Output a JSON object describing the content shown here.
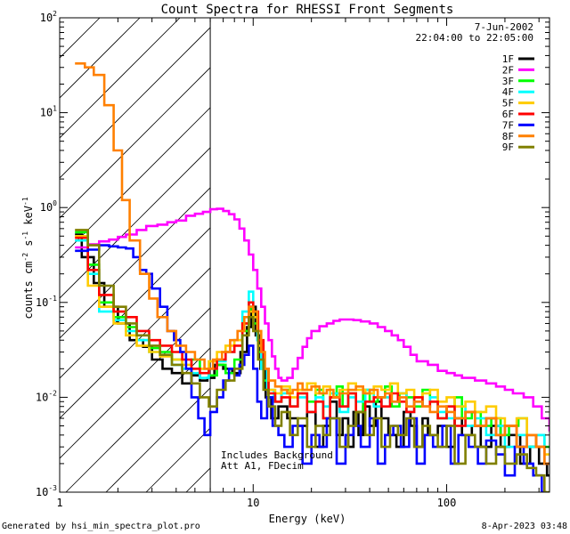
{
  "chart_data": {
    "type": "line",
    "title": "Count Spectra for RHESSI Front Segments",
    "xlabel": "Energy (keV)",
    "ylabel": "counts cm",
    "ylabel_parts": {
      "a": "counts cm",
      "b": "-2",
      "c": " s",
      "d": "-1",
      "e": " keV",
      "f": "-1"
    },
    "x_scale": "log",
    "y_scale": "log",
    "xlim": [
      1,
      340
    ],
    "ylim": [
      0.001,
      100
    ],
    "x_ticks": [
      {
        "v": 1,
        "label": "1"
      },
      {
        "v": 10,
        "label": "10"
      },
      {
        "v": 100,
        "label": "100"
      }
    ],
    "y_ticks": [
      {
        "v": 0.001,
        "base": "10",
        "exp": "-3"
      },
      {
        "v": 0.01,
        "base": "10",
        "exp": "-2"
      },
      {
        "v": 0.1,
        "base": "10",
        "exp": "-1"
      },
      {
        "v": 1,
        "base": "10",
        "exp": "0"
      },
      {
        "v": 10,
        "base": "10",
        "exp": "1"
      },
      {
        "v": 100,
        "base": "10",
        "exp": "2"
      }
    ],
    "date": "7-Jun-2002",
    "time_range": "22:04:00 to 22:05:00",
    "annotation_1": "Includes Background",
    "annotation_2": "Att A1, FDecim",
    "threshold_kev": 6,
    "series": [
      {
        "name": "1F",
        "color": "#000000",
        "x": [
          1.2,
          1.3,
          1.5,
          1.7,
          2.0,
          2.3,
          2.7,
          3.0,
          3.4,
          3.8,
          4.3,
          4.8,
          5.3,
          5.8,
          6.3,
          7.0,
          7.8,
          8.6,
          9.3,
          9.8,
          10.3,
          10.9,
          11.6,
          12.4,
          13.5,
          15,
          17,
          19,
          21,
          23,
          25,
          27,
          29,
          31,
          33,
          35,
          37,
          40,
          43,
          46,
          50,
          55,
          60,
          65,
          70,
          75,
          80,
          90,
          100,
          110,
          120,
          135,
          150,
          170,
          190,
          210,
          240,
          270,
          300,
          330
        ],
        "y": [
          0.52,
          0.3,
          0.16,
          0.09,
          0.06,
          0.04,
          0.034,
          0.025,
          0.02,
          0.018,
          0.014,
          0.017,
          0.015,
          0.016,
          0.022,
          0.02,
          0.018,
          0.03,
          0.055,
          0.09,
          0.045,
          0.02,
          0.01,
          0.006,
          0.008,
          0.006,
          0.005,
          0.007,
          0.003,
          0.005,
          0.009,
          0.004,
          0.006,
          0.003,
          0.007,
          0.004,
          0.008,
          0.005,
          0.009,
          0.006,
          0.004,
          0.003,
          0.007,
          0.005,
          0.003,
          0.006,
          0.004,
          0.005,
          0.003,
          0.006,
          0.004,
          0.005,
          0.003,
          0.005,
          0.003,
          0.004,
          0.002,
          0.003,
          0.002,
          0.0015
        ]
      },
      {
        "name": "2F",
        "color": "#ff00ff",
        "x": [
          1.2,
          1.4,
          1.6,
          1.8,
          2.0,
          2.2,
          2.5,
          2.8,
          3.2,
          3.6,
          4.0,
          4.5,
          5.0,
          5.5,
          6.0,
          6.5,
          7.0,
          7.5,
          8.0,
          8.5,
          9.0,
          9.5,
          10,
          10.5,
          11,
          11.5,
          12,
          12.5,
          13,
          13.5,
          14,
          15,
          16,
          17,
          18,
          19,
          20,
          22,
          24,
          26,
          28,
          30,
          33,
          36,
          40,
          44,
          48,
          52,
          56,
          60,
          65,
          70,
          80,
          90,
          100,
          110,
          120,
          140,
          160,
          180,
          200,
          220,
          250,
          280,
          310,
          340
        ],
        "y": [
          0.38,
          0.41,
          0.44,
          0.46,
          0.49,
          0.52,
          0.58,
          0.64,
          0.66,
          0.7,
          0.73,
          0.82,
          0.86,
          0.9,
          0.96,
          0.97,
          0.92,
          0.85,
          0.75,
          0.6,
          0.45,
          0.32,
          0.22,
          0.14,
          0.09,
          0.06,
          0.04,
          0.027,
          0.02,
          0.016,
          0.015,
          0.016,
          0.02,
          0.026,
          0.034,
          0.042,
          0.05,
          0.056,
          0.06,
          0.064,
          0.066,
          0.066,
          0.065,
          0.063,
          0.06,
          0.055,
          0.05,
          0.045,
          0.04,
          0.034,
          0.028,
          0.024,
          0.022,
          0.019,
          0.018,
          0.017,
          0.016,
          0.015,
          0.014,
          0.013,
          0.012,
          0.011,
          0.01,
          0.008,
          0.006,
          0.0045
        ]
      },
      {
        "name": "3F",
        "color": "#00ff00",
        "x": [
          1.2,
          1.4,
          1.6,
          1.9,
          2.2,
          2.5,
          2.9,
          3.3,
          3.8,
          4.3,
          4.8,
          5.3,
          5.9,
          6.5,
          7.2,
          8,
          8.8,
          9.5,
          10,
          10.6,
          11.3,
          12,
          13,
          14,
          15.5,
          17,
          19,
          21,
          23,
          25,
          27,
          29,
          31,
          34,
          37,
          40,
          44,
          48,
          52,
          57,
          62,
          68,
          75,
          82,
          90,
          100,
          110,
          120,
          135,
          150,
          170,
          190,
          210,
          235,
          260,
          290,
          320
        ],
        "y": [
          0.55,
          0.25,
          0.1,
          0.07,
          0.055,
          0.04,
          0.033,
          0.03,
          0.025,
          0.02,
          0.025,
          0.02,
          0.017,
          0.022,
          0.018,
          0.025,
          0.05,
          0.085,
          0.06,
          0.03,
          0.015,
          0.01,
          0.009,
          0.012,
          0.008,
          0.011,
          0.009,
          0.012,
          0.006,
          0.01,
          0.013,
          0.008,
          0.011,
          0.007,
          0.012,
          0.009,
          0.01,
          0.013,
          0.008,
          0.011,
          0.01,
          0.008,
          0.012,
          0.009,
          0.006,
          0.008,
          0.01,
          0.006,
          0.007,
          0.005,
          0.006,
          0.004,
          0.005,
          0.006,
          0.003,
          0.004,
          0.003
        ]
      },
      {
        "name": "4F",
        "color": "#00ffff",
        "x": [
          1.2,
          1.4,
          1.6,
          1.9,
          2.2,
          2.5,
          2.9,
          3.3,
          3.8,
          4.3,
          4.8,
          5.3,
          5.9,
          6.5,
          7.2,
          8,
          8.8,
          9.5,
          10,
          10.5,
          11,
          11.8,
          12.8,
          14,
          15.5,
          17,
          19,
          21,
          23,
          25,
          28,
          31,
          34,
          38,
          42,
          46,
          51,
          56,
          62,
          68,
          75,
          82,
          90,
          100,
          110,
          125,
          140,
          160,
          180,
          200,
          230,
          260,
          290,
          320
        ],
        "y": [
          0.45,
          0.2,
          0.08,
          0.065,
          0.05,
          0.04,
          0.03,
          0.028,
          0.022,
          0.02,
          0.018,
          0.016,
          0.02,
          0.024,
          0.03,
          0.04,
          0.08,
          0.13,
          0.07,
          0.04,
          0.02,
          0.012,
          0.009,
          0.011,
          0.008,
          0.01,
          0.007,
          0.01,
          0.008,
          0.011,
          0.007,
          0.01,
          0.009,
          0.012,
          0.008,
          0.01,
          0.009,
          0.011,
          0.007,
          0.009,
          0.008,
          0.01,
          0.007,
          0.006,
          0.008,
          0.005,
          0.006,
          0.004,
          0.005,
          0.003,
          0.004,
          0.003,
          0.004,
          0.002
        ]
      },
      {
        "name": "5F",
        "color": "#ffcc00",
        "x": [
          1.2,
          1.4,
          1.6,
          1.9,
          2.2,
          2.5,
          2.9,
          3.3,
          3.8,
          4.3,
          4.8,
          5.3,
          5.9,
          6.5,
          7.2,
          8,
          8.8,
          9.5,
          10,
          10.6,
          11.3,
          12,
          13,
          14,
          15.5,
          17,
          19,
          21,
          23,
          25,
          28,
          31,
          34,
          38,
          42,
          46,
          51,
          56,
          62,
          68,
          75,
          82,
          90,
          100,
          110,
          125,
          140,
          160,
          180,
          200,
          230,
          260,
          290,
          320
        ],
        "y": [
          0.5,
          0.15,
          0.09,
          0.06,
          0.045,
          0.035,
          0.03,
          0.027,
          0.025,
          0.022,
          0.02,
          0.02,
          0.024,
          0.03,
          0.035,
          0.04,
          0.06,
          0.08,
          0.07,
          0.035,
          0.02,
          0.012,
          0.011,
          0.013,
          0.01,
          0.012,
          0.014,
          0.011,
          0.013,
          0.01,
          0.012,
          0.014,
          0.012,
          0.011,
          0.013,
          0.012,
          0.014,
          0.011,
          0.012,
          0.01,
          0.011,
          0.012,
          0.009,
          0.01,
          0.008,
          0.009,
          0.007,
          0.008,
          0.006,
          0.005,
          0.006,
          0.004,
          0.003,
          0.0025
        ]
      },
      {
        "name": "6F",
        "color": "#ff0000",
        "x": [
          1.2,
          1.4,
          1.6,
          1.9,
          2.2,
          2.5,
          2.9,
          3.3,
          3.8,
          4.3,
          4.8,
          5.3,
          5.9,
          6.5,
          7.2,
          8,
          8.8,
          9.5,
          10,
          10.6,
          11.3,
          12,
          13,
          14,
          15.5,
          17,
          19,
          21,
          23,
          25,
          28,
          31,
          34,
          38,
          42,
          46,
          51,
          56,
          62,
          68,
          75,
          82,
          90,
          100,
          110,
          125,
          140,
          160,
          180,
          200,
          230,
          260,
          290,
          320
        ],
        "y": [
          0.48,
          0.22,
          0.12,
          0.08,
          0.07,
          0.05,
          0.04,
          0.035,
          0.03,
          0.025,
          0.02,
          0.018,
          0.02,
          0.025,
          0.03,
          0.035,
          0.06,
          0.1,
          0.08,
          0.04,
          0.02,
          0.011,
          0.009,
          0.01,
          0.008,
          0.011,
          0.007,
          0.009,
          0.006,
          0.01,
          0.008,
          0.011,
          0.007,
          0.009,
          0.01,
          0.008,
          0.011,
          0.009,
          0.007,
          0.01,
          0.008,
          0.009,
          0.006,
          0.008,
          0.005,
          0.007,
          0.005,
          0.006,
          0.004,
          0.005,
          0.003,
          0.004,
          0.003,
          0.002
        ]
      },
      {
        "name": "7F",
        "color": "#0000ff",
        "x": [
          1.2,
          1.4,
          1.6,
          1.8,
          2.0,
          2.2,
          2.4,
          2.6,
          2.8,
          3.0,
          3.3,
          3.6,
          3.9,
          4.2,
          4.5,
          4.8,
          5.2,
          5.6,
          6.0,
          6.5,
          7.0,
          7.5,
          8,
          8.5,
          9,
          9.5,
          10,
          10.5,
          11,
          11.8,
          12.6,
          13.5,
          14.5,
          16,
          18,
          20,
          22,
          24,
          27,
          30,
          33,
          36,
          40,
          44,
          48,
          53,
          58,
          64,
          70,
          77,
          85,
          95,
          105,
          115,
          130,
          145,
          160,
          180,
          200,
          225,
          250,
          280,
          310
        ],
        "y": [
          0.35,
          0.36,
          0.4,
          0.39,
          0.38,
          0.37,
          0.3,
          0.22,
          0.2,
          0.14,
          0.09,
          0.05,
          0.04,
          0.03,
          0.02,
          0.01,
          0.006,
          0.004,
          0.007,
          0.01,
          0.015,
          0.02,
          0.017,
          0.022,
          0.028,
          0.035,
          0.02,
          0.009,
          0.006,
          0.01,
          0.005,
          0.004,
          0.003,
          0.005,
          0.002,
          0.004,
          0.003,
          0.006,
          0.002,
          0.004,
          0.005,
          0.003,
          0.006,
          0.002,
          0.004,
          0.005,
          0.003,
          0.006,
          0.002,
          0.004,
          0.003,
          0.005,
          0.002,
          0.004,
          0.003,
          0.002,
          0.0035,
          0.0025,
          0.0015,
          0.003,
          0.002,
          0.0015,
          0.001
        ]
      },
      {
        "name": "8F",
        "color": "#ff8000",
        "x": [
          1.2,
          1.35,
          1.5,
          1.7,
          1.9,
          2.1,
          2.3,
          2.6,
          2.9,
          3.2,
          3.6,
          4.0,
          4.5,
          5.0,
          5.6,
          6.2,
          6.9,
          7.6,
          8.3,
          9.0,
          9.5,
          10,
          10.5,
          11,
          11.5,
          12,
          13,
          14,
          15,
          16,
          17,
          18,
          20,
          22,
          24,
          26,
          28,
          31,
          34,
          37,
          40,
          44,
          48,
          52,
          57,
          62,
          68,
          75,
          82,
          90,
          100,
          110,
          125,
          140,
          160,
          180,
          200,
          230,
          260,
          290,
          320
        ],
        "y": [
          33,
          30,
          25,
          12,
          4,
          1.2,
          0.45,
          0.2,
          0.11,
          0.07,
          0.05,
          0.035,
          0.03,
          0.025,
          0.02,
          0.025,
          0.03,
          0.04,
          0.05,
          0.07,
          0.09,
          0.08,
          0.05,
          0.03,
          0.02,
          0.015,
          0.013,
          0.012,
          0.011,
          0.012,
          0.014,
          0.012,
          0.013,
          0.011,
          0.012,
          0.01,
          0.011,
          0.012,
          0.013,
          0.011,
          0.012,
          0.01,
          0.011,
          0.009,
          0.01,
          0.008,
          0.009,
          0.008,
          0.007,
          0.008,
          0.007,
          0.006,
          0.007,
          0.005,
          0.006,
          0.004,
          0.005,
          0.003,
          0.004,
          0.003,
          0.002
        ]
      },
      {
        "name": "9F",
        "color": "#808000",
        "x": [
          1.2,
          1.4,
          1.6,
          1.9,
          2.2,
          2.5,
          2.9,
          3.3,
          3.8,
          4.3,
          4.8,
          5.3,
          5.9,
          6.5,
          7.2,
          8,
          8.8,
          9.5,
          10,
          10.6,
          11.3,
          12,
          13,
          14,
          15.5,
          17,
          19,
          21,
          23,
          25,
          28,
          31,
          34,
          38,
          42,
          46,
          51,
          56,
          62,
          68,
          75,
          82,
          90,
          100,
          110,
          125,
          140,
          160,
          180,
          200,
          230,
          260,
          290,
          320
        ],
        "y": [
          0.58,
          0.4,
          0.15,
          0.09,
          0.06,
          0.045,
          0.035,
          0.028,
          0.022,
          0.018,
          0.014,
          0.01,
          0.008,
          0.012,
          0.015,
          0.02,
          0.045,
          0.07,
          0.05,
          0.025,
          0.012,
          0.008,
          0.005,
          0.007,
          0.004,
          0.006,
          0.003,
          0.005,
          0.004,
          0.006,
          0.003,
          0.005,
          0.007,
          0.004,
          0.006,
          0.003,
          0.005,
          0.004,
          0.006,
          0.003,
          0.005,
          0.004,
          0.003,
          0.005,
          0.002,
          0.004,
          0.003,
          0.002,
          0.003,
          0.002,
          0.0025,
          0.0018,
          0.0015,
          0.001
        ]
      }
    ]
  },
  "footer": {
    "left": "Generated by hsi_min_spectra_plot.pro",
    "right": "8-Apr-2023 03:48"
  }
}
